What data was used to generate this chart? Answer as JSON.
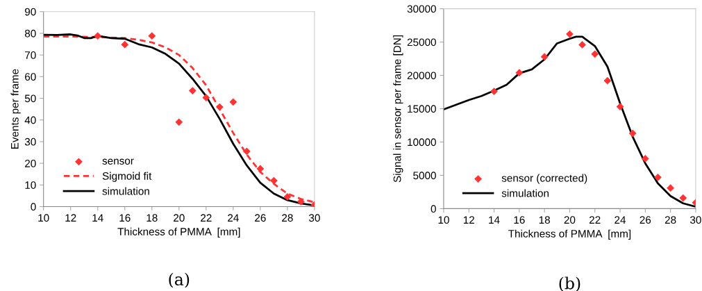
{
  "chart_data": [
    {
      "type": "scatter",
      "xlabel": "Thickness of PMMA  [mm]",
      "ylabel": "Events per frame",
      "xlim": [
        10,
        30
      ],
      "xticks": [
        10,
        12,
        14,
        16,
        18,
        20,
        22,
        24,
        26,
        28,
        30
      ],
      "ylim": [
        0,
        90
      ],
      "yticks": [
        0,
        10,
        20,
        30,
        40,
        50,
        60,
        70,
        80,
        90
      ],
      "grid": false,
      "legend": "bottom left",
      "annotations": [
        "(a)"
      ],
      "series": [
        {
          "name": "sensor",
          "type": "scatter",
          "marker": "diamond",
          "color": "#ff3333",
          "x": [
            14,
            16,
            18,
            20,
            21,
            22,
            23,
            24,
            25,
            26,
            27,
            28,
            29,
            30
          ],
          "values": [
            78.8,
            74.8,
            78.8,
            39,
            53.5,
            50.3,
            46,
            48.3,
            25.5,
            17.5,
            12,
            4.5,
            2.3,
            0.8
          ]
        },
        {
          "name": "Sigmoid fit",
          "type": "line",
          "line_style": "dashed",
          "color": "#ff3333",
          "x": [
            10,
            12,
            14,
            16,
            17,
            18,
            19,
            20,
            21,
            22,
            23,
            24,
            25,
            26,
            27,
            28,
            29,
            30
          ],
          "values": [
            78.5,
            78.5,
            78.3,
            77.8,
            77,
            75.8,
            73.5,
            70,
            64,
            56,
            45,
            34,
            24,
            16,
            10.5,
            6,
            3.5,
            2
          ]
        },
        {
          "name": "simulation",
          "type": "line",
          "line_style": "solid",
          "color": "#000000",
          "x": [
            10,
            11,
            12,
            12.5,
            13,
            13.5,
            14,
            15,
            16,
            17,
            18,
            19,
            20,
            21,
            22,
            23,
            24,
            25,
            26,
            27,
            28,
            29,
            30
          ],
          "values": [
            79.3,
            79.2,
            79.5,
            79,
            77.8,
            77.8,
            78.8,
            77.8,
            77.5,
            75,
            73.5,
            70.5,
            66,
            59,
            51,
            40.5,
            29,
            19,
            11,
            6,
            3,
            1.5,
            0.5
          ]
        }
      ]
    },
    {
      "type": "scatter",
      "xlabel": "Thickness of PMMA  [mm]",
      "ylabel": "Signal in sensor per frame [DN]",
      "xlim": [
        10,
        30
      ],
      "xticks": [
        10,
        12,
        14,
        16,
        18,
        20,
        22,
        24,
        26,
        28,
        30
      ],
      "ylim": [
        0,
        30000
      ],
      "yticks": [
        0,
        5000,
        10000,
        15000,
        20000,
        25000,
        30000
      ],
      "grid": false,
      "legend": "bottom left",
      "annotations": [
        "(b)"
      ],
      "series": [
        {
          "name": "sensor (corrected)",
          "type": "scatter",
          "marker": "diamond",
          "color": "#ff3333",
          "x": [
            14,
            16,
            18,
            20,
            21,
            22,
            23,
            24,
            25,
            26,
            27,
            28,
            29,
            30
          ],
          "values": [
            17600,
            20400,
            22800,
            26200,
            24600,
            23200,
            19200,
            15300,
            11300,
            7500,
            4700,
            3100,
            1600,
            900
          ]
        },
        {
          "name": "simulation",
          "type": "line",
          "line_style": "solid",
          "color": "#000000",
          "x": [
            10,
            11,
            12,
            13,
            14,
            15,
            16,
            17,
            18,
            19,
            20,
            20.5,
            21,
            22,
            23,
            24,
            25,
            26,
            27,
            28,
            29,
            30
          ],
          "values": [
            14900,
            15600,
            16300,
            16900,
            17700,
            18600,
            20300,
            20900,
            22400,
            24800,
            25500,
            25800,
            25800,
            24400,
            21300,
            15800,
            10800,
            6800,
            3800,
            1900,
            800,
            300
          ]
        }
      ]
    }
  ]
}
